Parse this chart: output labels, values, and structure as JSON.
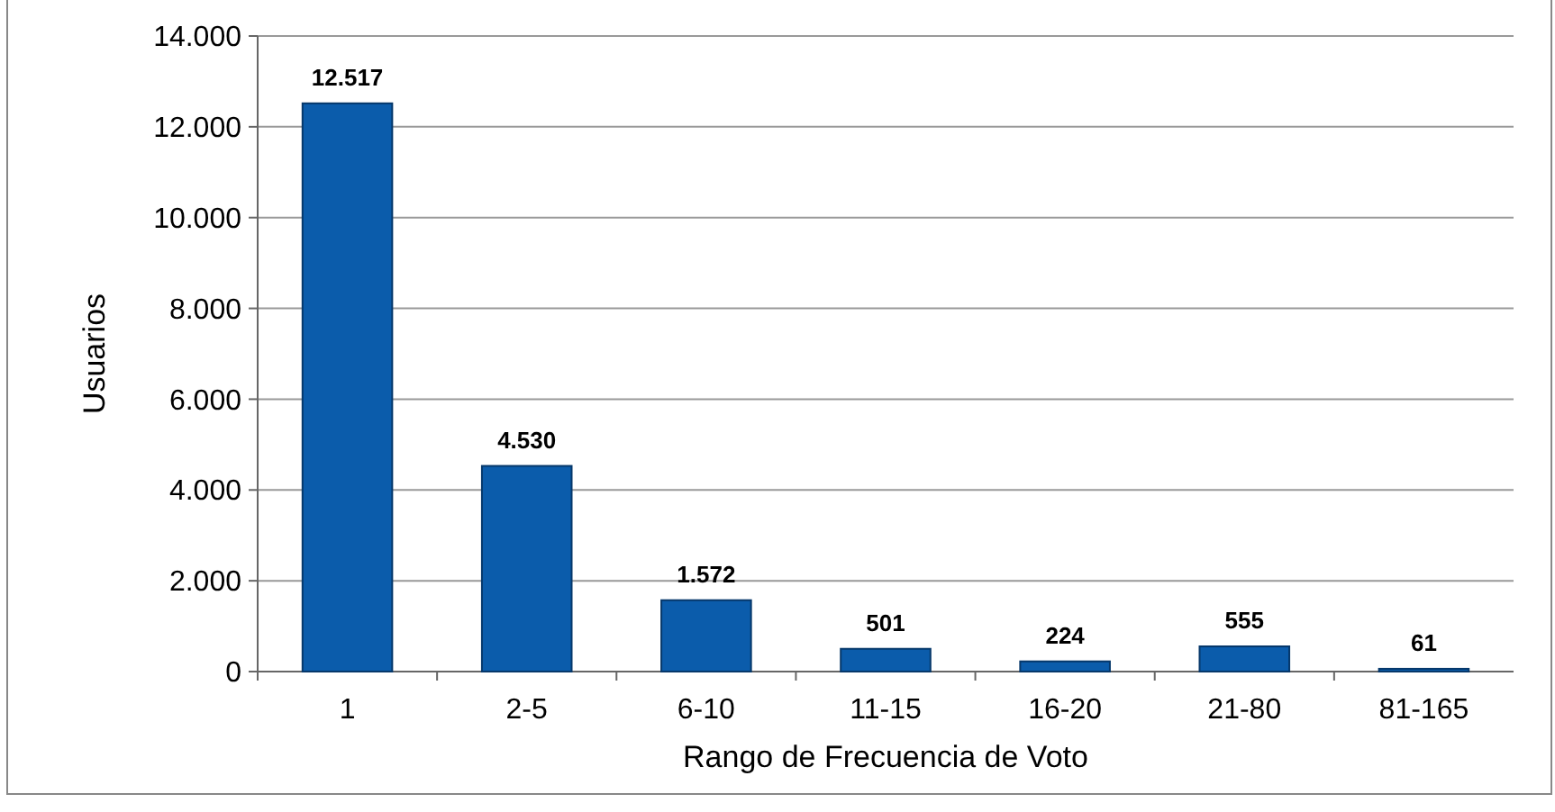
{
  "chart_data": {
    "type": "bar",
    "xlabel": "Rango de Frecuencia de Voto",
    "ylabel": "Usuarios",
    "categories": [
      "1",
      "2-5",
      "6-10",
      "11-15",
      "16-20",
      "21-80",
      "81-165"
    ],
    "values": [
      12517,
      4530,
      1572,
      501,
      224,
      555,
      61
    ],
    "value_labels": [
      "12.517",
      "4.530",
      "1.572",
      "501",
      "224",
      "555",
      "61"
    ],
    "color": "#0b5cab",
    "ylim": [
      0,
      14000
    ],
    "yticks": [
      {
        "value": 0,
        "label": "0"
      },
      {
        "value": 2000,
        "label": "2.000"
      },
      {
        "value": 4000,
        "label": "4.000"
      },
      {
        "value": 6000,
        "label": "6.000"
      },
      {
        "value": 8000,
        "label": "8.000"
      },
      {
        "value": 10000,
        "label": "10.000"
      },
      {
        "value": 12000,
        "label": "12.000"
      },
      {
        "value": 14000,
        "label": "14.000"
      }
    ],
    "grid": "y"
  }
}
